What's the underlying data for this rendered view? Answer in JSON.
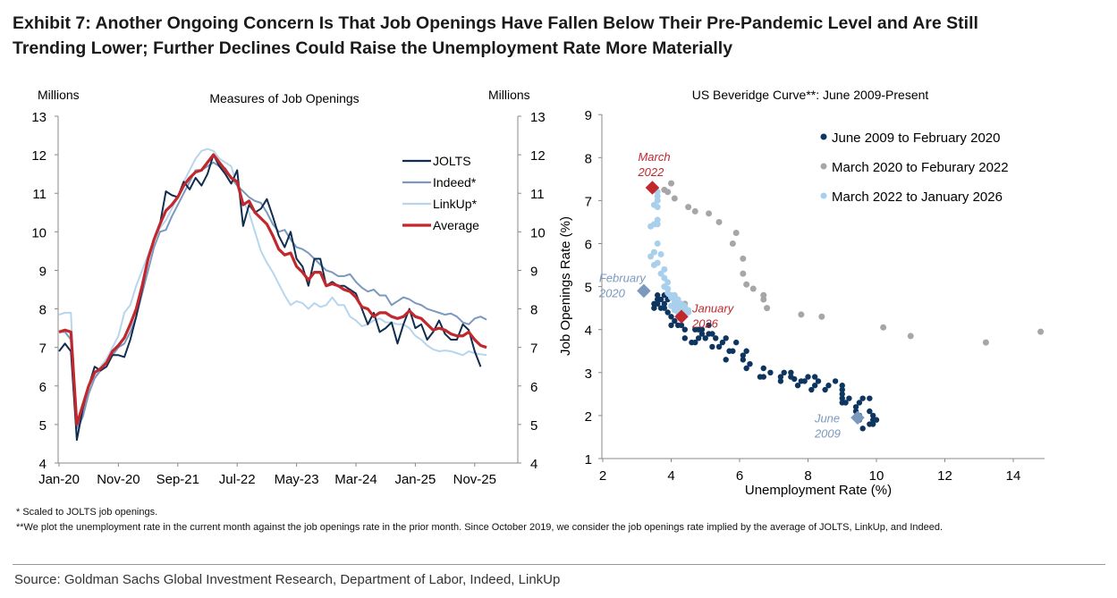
{
  "title_line1": "Exhibit 7: Another Ongoing Concern Is That Job Openings Have Fallen Below Their Pre-Pandemic Level and Are Still",
  "title_line2": "Trending Lower; Further Declines Could Raise the Unemployment Rate More Materially",
  "footnote1": "* Scaled to JOLTS job openings.",
  "footnote2": "**We plot the unemployment rate in the current month against the job openings rate in the prior month. Since October 2019, we consider the job openings rate implied by the average of JOLTS, LinkUp, and Indeed.",
  "source": "Source: Goldman Sachs Global Investment Research, Department of Labor, Indeed, LinkUp",
  "chart_data": [
    {
      "type": "line",
      "title": "Measures of Job Openings",
      "ylabel_left": "Millions",
      "ylabel_right": "Millions",
      "ylim": [
        4,
        13
      ],
      "yticks": [
        4,
        5,
        6,
        7,
        8,
        9,
        10,
        11,
        12,
        13
      ],
      "x_start": "Jan-20",
      "x_frequency": "monthly",
      "xtick_labels": [
        "Jan-20",
        "Nov-20",
        "Sep-21",
        "Jul-22",
        "May-23",
        "Mar-24",
        "Jan-25",
        "Nov-25"
      ],
      "legend_position": "top-right",
      "series": [
        {
          "name": "JOLTS",
          "color": "#0f2d4f",
          "values": [
            6.9,
            7.1,
            6.9,
            4.6,
            5.4,
            6.0,
            6.5,
            6.4,
            6.5,
            6.8,
            6.8,
            6.75,
            7.2,
            7.8,
            8.5,
            9.3,
            9.8,
            10.2,
            11.05,
            10.95,
            10.9,
            11.3,
            11.1,
            11.4,
            11.2,
            11.5,
            12.0,
            11.7,
            11.5,
            11.25,
            11.6,
            10.15,
            10.7,
            10.5,
            10.6,
            10.85,
            10.4,
            9.9,
            9.6,
            10.0,
            9.3,
            9.1,
            8.6,
            9.3,
            9.3,
            8.6,
            8.7,
            8.6,
            8.6,
            8.5,
            8.4,
            8.0,
            7.6,
            7.9,
            7.4,
            7.5,
            7.65,
            7.1,
            7.6,
            8.0,
            7.5,
            7.6,
            7.2,
            7.4,
            7.7,
            7.35,
            7.2,
            7.2,
            7.6,
            7.45,
            6.9,
            6.5
          ]
        },
        {
          "name": "Indeed*",
          "color": "#7b98bd",
          "values": [
            7.4,
            7.4,
            7.2,
            4.9,
            5.2,
            5.8,
            6.2,
            6.4,
            6.6,
            6.8,
            7.0,
            7.1,
            7.4,
            7.8,
            8.4,
            9.0,
            9.6,
            10.0,
            10.05,
            10.4,
            10.7,
            11.0,
            11.3,
            11.6,
            11.6,
            11.7,
            11.8,
            11.7,
            11.65,
            11.4,
            11.2,
            11.05,
            10.9,
            10.8,
            10.75,
            10.5,
            10.2,
            10.0,
            10.05,
            9.8,
            9.6,
            9.55,
            9.45,
            9.3,
            9.15,
            9.0,
            8.95,
            8.85,
            8.85,
            8.9,
            8.7,
            8.55,
            8.45,
            8.5,
            8.35,
            8.35,
            8.1,
            8.2,
            8.3,
            8.25,
            8.15,
            8.1,
            8.0,
            7.95,
            7.9,
            7.85,
            7.88,
            7.8,
            7.65,
            7.6,
            7.75,
            7.8,
            7.72
          ]
        },
        {
          "name": "LinkUp*",
          "color": "#b7d5ec",
          "values": [
            7.85,
            7.9,
            7.9,
            4.8,
            5.2,
            5.8,
            6.2,
            6.5,
            6.7,
            7.0,
            7.3,
            7.9,
            8.1,
            8.6,
            9.0,
            9.4,
            9.8,
            10.1,
            10.3,
            10.6,
            10.9,
            11.3,
            11.6,
            11.9,
            12.1,
            12.15,
            12.1,
            11.9,
            11.8,
            11.7,
            11.2,
            10.8,
            10.5,
            10.0,
            9.5,
            9.2,
            8.95,
            8.65,
            8.35,
            8.1,
            8.2,
            8.15,
            8.0,
            8.15,
            8.05,
            8.1,
            8.3,
            8.1,
            8.1,
            7.8,
            7.7,
            7.55,
            7.6,
            7.7,
            7.75,
            7.65,
            7.65,
            7.6,
            7.6,
            7.5,
            7.3,
            7.2,
            7.05,
            6.95,
            6.9,
            6.92,
            6.9,
            6.85,
            6.8,
            6.9,
            6.85,
            6.82,
            6.8
          ]
        },
        {
          "name": "Average",
          "color": "#c0282d",
          "values": [
            7.4,
            7.45,
            7.4,
            5.0,
            5.5,
            6.0,
            6.35,
            6.45,
            6.6,
            6.9,
            7.05,
            7.25,
            7.6,
            8.0,
            8.6,
            9.3,
            9.8,
            10.2,
            10.55,
            10.7,
            10.9,
            11.2,
            11.4,
            11.55,
            11.6,
            11.8,
            12.0,
            11.8,
            11.6,
            11.4,
            11.3,
            10.7,
            10.8,
            10.5,
            10.35,
            10.2,
            9.9,
            9.55,
            9.4,
            9.45,
            9.1,
            8.95,
            8.75,
            8.95,
            8.95,
            8.6,
            8.65,
            8.6,
            8.5,
            8.45,
            8.3,
            8.05,
            8.0,
            7.8,
            7.9,
            7.9,
            7.8,
            7.75,
            7.8,
            7.95,
            7.8,
            7.75,
            7.6,
            7.45,
            7.5,
            7.45,
            7.35,
            7.3,
            7.3,
            7.4,
            7.2,
            7.05,
            7.0
          ]
        }
      ]
    },
    {
      "type": "scatter",
      "title": "US Beveridge Curve**: June 2009-Present",
      "xlabel": "Unemployment Rate (%)",
      "ylabel": "Job Openings Rate (%)",
      "xlim": [
        2,
        15
      ],
      "ylim": [
        1,
        9
      ],
      "xticks": [
        2,
        4,
        6,
        8,
        10,
        12,
        14
      ],
      "yticks": [
        1,
        2,
        3,
        4,
        5,
        6,
        7,
        8,
        9
      ],
      "legend_position": "top-right",
      "series": [
        {
          "name": "June 2009 to February 2020",
          "color": "#0d3560",
          "points": [
            [
              9.5,
              2.0
            ],
            [
              9.5,
              1.9
            ],
            [
              9.6,
              1.7
            ],
            [
              9.8,
              2.1
            ],
            [
              9.9,
              1.8
            ],
            [
              9.9,
              1.9
            ],
            [
              10.0,
              1.9
            ],
            [
              9.8,
              1.8
            ],
            [
              9.9,
              2.0
            ],
            [
              9.8,
              2.4
            ],
            [
              9.6,
              2.4
            ],
            [
              9.5,
              2.3
            ],
            [
              9.4,
              2.2
            ],
            [
              9.4,
              2.1
            ],
            [
              9.2,
              2.4
            ],
            [
              9.0,
              2.3
            ],
            [
              9.0,
              2.4
            ],
            [
              9.0,
              2.5
            ],
            [
              9.1,
              2.3
            ],
            [
              9.0,
              2.7
            ],
            [
              9.0,
              2.6
            ],
            [
              8.8,
              2.8
            ],
            [
              8.6,
              2.7
            ],
            [
              8.5,
              2.6
            ],
            [
              8.3,
              2.8
            ],
            [
              8.2,
              2.9
            ],
            [
              8.2,
              2.7
            ],
            [
              8.1,
              2.6
            ],
            [
              8.0,
              2.9
            ],
            [
              7.9,
              2.8
            ],
            [
              7.8,
              2.8
            ],
            [
              7.7,
              2.7
            ],
            [
              7.6,
              2.85
            ],
            [
              7.5,
              2.9
            ],
            [
              7.5,
              3.0
            ],
            [
              7.3,
              3.0
            ],
            [
              7.2,
              2.8
            ],
            [
              7.2,
              2.9
            ],
            [
              6.9,
              3.0
            ],
            [
              6.7,
              3.1
            ],
            [
              6.7,
              2.9
            ],
            [
              6.6,
              2.9
            ],
            [
              6.2,
              3.1
            ],
            [
              6.2,
              3.5
            ],
            [
              6.3,
              3.2
            ],
            [
              6.1,
              3.4
            ],
            [
              6.1,
              3.3
            ],
            [
              5.9,
              3.7
            ],
            [
              5.8,
              3.5
            ],
            [
              5.7,
              3.5
            ],
            [
              5.6,
              3.3
            ],
            [
              5.6,
              3.8
            ],
            [
              5.5,
              3.7
            ],
            [
              5.4,
              3.6
            ],
            [
              5.3,
              3.8
            ],
            [
              5.2,
              3.6
            ],
            [
              5.1,
              3.9
            ],
            [
              5.0,
              3.8
            ],
            [
              5.1,
              4.1
            ],
            [
              4.9,
              3.9
            ],
            [
              4.9,
              4.0
            ],
            [
              4.8,
              3.8
            ],
            [
              4.7,
              3.7
            ],
            [
              4.7,
              4.0
            ],
            [
              4.6,
              3.7
            ],
            [
              4.4,
              3.8
            ],
            [
              4.4,
              4.0
            ],
            [
              4.3,
              4.1
            ],
            [
              4.2,
              4.1
            ],
            [
              4.1,
              4.2
            ],
            [
              4.0,
              4.1
            ],
            [
              4.0,
              4.3
            ],
            [
              3.9,
              4.4
            ],
            [
              3.8,
              4.5
            ],
            [
              3.7,
              4.5
            ],
            [
              3.8,
              4.6
            ],
            [
              3.9,
              4.7
            ],
            [
              3.6,
              4.6
            ],
            [
              3.5,
              4.6
            ],
            [
              3.5,
              4.5
            ],
            [
              3.6,
              4.8
            ],
            [
              3.7,
              4.7
            ],
            [
              3.8,
              4.8
            ],
            [
              3.6,
              4.7
            ],
            [
              4.8,
              4.0
            ],
            [
              5.2,
              3.9
            ]
          ]
        },
        {
          "name": "March 2020 to Feburary 2022",
          "color": "#a6a6a6",
          "points": [
            [
              4.4,
              4.6
            ],
            [
              14.8,
              3.95
            ],
            [
              13.2,
              3.7
            ],
            [
              11.0,
              3.85
            ],
            [
              10.2,
              4.05
            ],
            [
              8.4,
              4.3
            ],
            [
              7.8,
              4.35
            ],
            [
              6.8,
              4.5
            ],
            [
              6.7,
              4.7
            ],
            [
              6.7,
              4.8
            ],
            [
              6.4,
              4.95
            ],
            [
              6.2,
              5.05
            ],
            [
              6.1,
              5.3
            ],
            [
              6.1,
              5.65
            ],
            [
              5.8,
              6.0
            ],
            [
              5.9,
              6.25
            ],
            [
              5.4,
              6.5
            ],
            [
              5.1,
              6.7
            ],
            [
              4.7,
              6.75
            ],
            [
              4.5,
              6.85
            ],
            [
              4.1,
              7.05
            ],
            [
              3.9,
              7.2
            ],
            [
              4.0,
              7.4
            ],
            [
              3.8,
              7.25
            ]
          ]
        },
        {
          "name": "March 2022 to January 2026",
          "color": "#a8d0ec",
          "points": [
            [
              3.6,
              7.2
            ],
            [
              3.6,
              7.1
            ],
            [
              3.6,
              7.0
            ],
            [
              3.5,
              6.9
            ],
            [
              3.6,
              6.85
            ],
            [
              3.6,
              6.55
            ],
            [
              3.5,
              6.45
            ],
            [
              3.6,
              6.45
            ],
            [
              3.4,
              6.4
            ],
            [
              3.6,
              6.0
            ],
            [
              3.5,
              5.8
            ],
            [
              3.4,
              5.7
            ],
            [
              3.7,
              5.75
            ],
            [
              3.5,
              5.5
            ],
            [
              3.6,
              5.55
            ],
            [
              3.8,
              5.4
            ],
            [
              3.7,
              5.3
            ],
            [
              3.8,
              5.2
            ],
            [
              3.9,
              5.1
            ],
            [
              3.8,
              5.0
            ],
            [
              3.9,
              4.95
            ],
            [
              4.0,
              4.8
            ],
            [
              3.9,
              4.85
            ],
            [
              4.1,
              4.8
            ],
            [
              4.1,
              4.7
            ],
            [
              4.0,
              4.75
            ],
            [
              4.2,
              4.6
            ],
            [
              4.1,
              4.6
            ],
            [
              4.2,
              4.5
            ],
            [
              4.3,
              4.55
            ],
            [
              4.3,
              4.5
            ],
            [
              4.4,
              4.45
            ],
            [
              4.5,
              4.4
            ],
            [
              4.2,
              4.4
            ],
            [
              4.1,
              4.45
            ],
            [
              4.3,
              4.6
            ],
            [
              4.4,
              4.5
            ],
            [
              4.2,
              4.7
            ],
            [
              4.0,
              4.55
            ],
            [
              4.1,
              4.65
            ],
            [
              4.4,
              4.55
            ],
            [
              4.5,
              4.45
            ],
            [
              4.2,
              4.55
            ]
          ]
        }
      ],
      "annotations": [
        {
          "label": [
            "March",
            "2022"
          ],
          "point": [
            3.45,
            7.3
          ],
          "color": "#c0282d"
        },
        {
          "label": [
            "January",
            "2026"
          ],
          "point": [
            4.3,
            4.3
          ],
          "color": "#c0282d"
        },
        {
          "label": [
            "February",
            "2020"
          ],
          "point": [
            3.2,
            4.9
          ],
          "color": "#7b98bd"
        },
        {
          "label": [
            "June",
            "2009"
          ],
          "point": [
            9.45,
            1.95
          ],
          "color": "#7b98bd"
        }
      ]
    }
  ]
}
